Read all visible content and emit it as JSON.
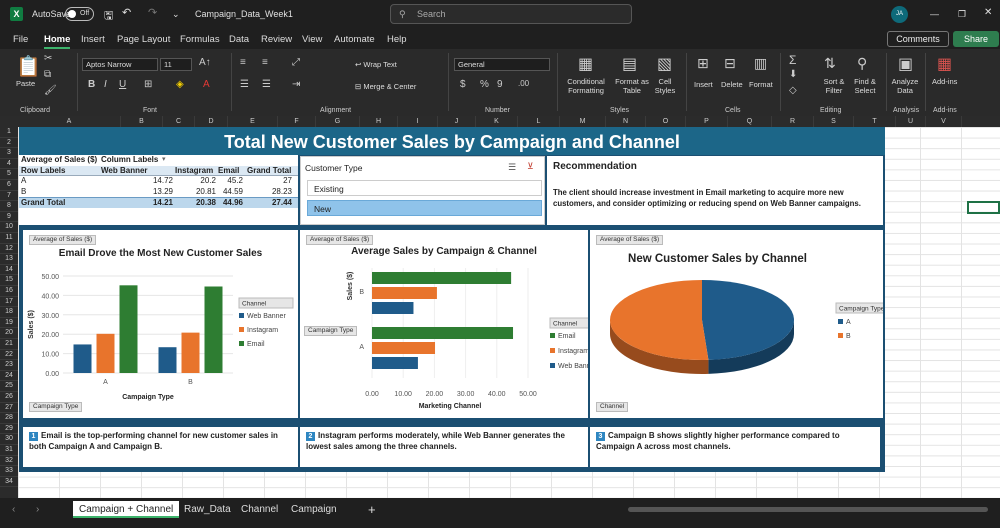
{
  "titlebar": {
    "app_letter": "X",
    "autosave_label": "AutoSave",
    "autosave_state": "Off",
    "doc_title": "Campaign_Data_Week1",
    "search_placeholder": "Search",
    "avatar_initials": "JA"
  },
  "menu": {
    "items": [
      "File",
      "Home",
      "Insert",
      "Page Layout",
      "Formulas",
      "Data",
      "Review",
      "View",
      "Automate",
      "Help"
    ],
    "active": "Home",
    "comments_label": "Comments",
    "share_label": "Share"
  },
  "ribbon": {
    "paste": "Paste",
    "clipboard": "Clipboard",
    "font_name": "Aptos Narrow",
    "font_size": "11",
    "font": "Font",
    "wrap_text": "Wrap Text",
    "merge_center": "Merge & Center",
    "alignment": "Alignment",
    "number_format": "General",
    "number": "Number",
    "conditional": "Conditional Formatting",
    "format_as_table": "Format as Table",
    "cell_styles": "Cell Styles",
    "styles": "Styles",
    "insert": "Insert",
    "delete": "Delete",
    "format": "Format",
    "cells": "Cells",
    "sort_filter": "Sort & Filter",
    "find_select": "Find & Select",
    "editing": "Editing",
    "analyze_data": "Analyze Data",
    "analysis": "Analysis",
    "addins": "Add-ins",
    "addins_group": "Add-ins"
  },
  "columns": [
    "A",
    "B",
    "C",
    "D",
    "E",
    "F",
    "G",
    "H",
    "I",
    "J",
    "K",
    "L",
    "M",
    "N",
    "O",
    "P",
    "Q",
    "R",
    "S",
    "T",
    "U",
    "V"
  ],
  "rows": [
    "1",
    "2",
    "3",
    "4",
    "5",
    "6",
    "7",
    "8",
    "9",
    "10",
    "11",
    "12",
    "13",
    "14",
    "15",
    "16",
    "17",
    "18",
    "19",
    "20",
    "21",
    "22",
    "23",
    "24",
    "25",
    "26",
    "27",
    "28",
    "29",
    "30",
    "31",
    "32",
    "33",
    "34"
  ],
  "dashboard": {
    "title": "Total New Customer Sales by Campaign and Channel",
    "pivot": {
      "measure": "Average of Sales ($)",
      "col_labels": "Column Labels",
      "row_labels": "Row Labels",
      "headers": [
        "Web Banner",
        "Instagram",
        "Email",
        "Grand Total"
      ],
      "rows": [
        {
          "label": "A",
          "values": [
            "14.72",
            "20.2",
            "45.2",
            "27"
          ]
        },
        {
          "label": "B",
          "values": [
            "13.29",
            "20.81",
            "44.59",
            "28.23"
          ]
        }
      ],
      "total": {
        "label": "Grand Total",
        "values": [
          "14.21",
          "20.38",
          "44.96",
          "27.44"
        ]
      }
    },
    "slicer": {
      "title": "Customer Type",
      "items": [
        "Existing",
        "New"
      ],
      "selected": "New"
    },
    "recommendation": {
      "title": "Recommendation",
      "text": "The client should increase investment in Email marketing to acquire more new customers, and consider optimizing or reducing spend on Web Banner campaigns."
    },
    "insights": [
      {
        "num": "1",
        "text": "Email is the top-performing channel for new customer sales in both Campaign A and Campaign B."
      },
      {
        "num": "2",
        "text": "Instagram performs moderately, while Web Banner generates the lowest sales among the three channels."
      },
      {
        "num": "3",
        "text": "Campaign B shows slightly higher performance compared to Campaign A across most channels."
      }
    ]
  },
  "chart_data": [
    {
      "type": "bar",
      "title": "Email Drove the Most New Customer Sales",
      "field_button": "Average of Sales ($)",
      "axis_button": "Campaign Type",
      "legend_title": "Channel",
      "categories": [
        "A",
        "B"
      ],
      "xlabel": "Campaign Type",
      "ylabel": "Sales ($)",
      "ylim": [
        0,
        50
      ],
      "yticks": [
        "0.00",
        "10.00",
        "20.00",
        "30.00",
        "40.00",
        "50.00"
      ],
      "series": [
        {
          "name": "Web Banner",
          "color": "#1f5b8a",
          "values": [
            14.72,
            13.29
          ]
        },
        {
          "name": "Instagram",
          "color": "#e8742c",
          "values": [
            20.2,
            20.81
          ]
        },
        {
          "name": "Email",
          "color": "#2e7d32",
          "values": [
            45.2,
            44.59
          ]
        }
      ],
      "legend_position": "right"
    },
    {
      "type": "bar",
      "orientation": "horizontal",
      "title": "Average Sales by Campaign & Channel",
      "field_button": "Average of Sales ($)",
      "axis_button": "Campaign Type",
      "legend_title": "Channel",
      "categories": [
        "A",
        "B"
      ],
      "xlabel": "Marketing Channel",
      "ylabel": "Sales ($)",
      "xlim": [
        0,
        50
      ],
      "xticks": [
        "0.00",
        "10.00",
        "20.00",
        "30.00",
        "40.00",
        "50.00"
      ],
      "series": [
        {
          "name": "Email",
          "color": "#2e7d32",
          "values": [
            45.2,
            44.59
          ]
        },
        {
          "name": "Instagram",
          "color": "#e8742c",
          "values": [
            20.2,
            20.81
          ]
        },
        {
          "name": "Web Banner",
          "color": "#1f5b8a",
          "values": [
            14.72,
            13.29
          ]
        }
      ],
      "legend_position": "right"
    },
    {
      "type": "pie",
      "title": "New Customer Sales by Channel",
      "field_button": "Average of Sales ($)",
      "legend_title": "Campaign Type",
      "axis_button": "Channel",
      "categories": [
        "A",
        "B"
      ],
      "values": [
        27,
        28.23
      ],
      "colors": [
        "#1f5b8a",
        "#e8742c"
      ],
      "legend_position": "right"
    }
  ],
  "sheets": {
    "tabs": [
      "Campaign + Channel",
      "Raw_Data",
      "Channel",
      "Campaign"
    ],
    "active": "Campaign + Channel"
  }
}
